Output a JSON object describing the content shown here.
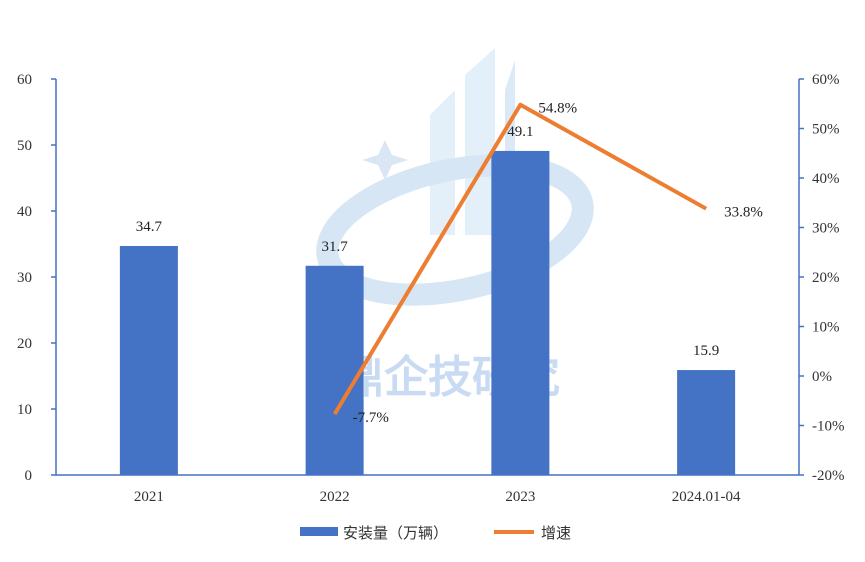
{
  "chart_data": {
    "type": "bar",
    "categories": [
      "2021",
      "2022",
      "2023",
      "2024.01-04"
    ],
    "series": [
      {
        "name": "安装量（万辆）",
        "type": "bar",
        "axis": "left",
        "values": [
          34.7,
          31.7,
          49.1,
          15.9
        ],
        "labels": [
          "34.7",
          "31.7",
          "49.1",
          "15.9"
        ],
        "color": "#4472C4"
      },
      {
        "name": "增速",
        "type": "line",
        "axis": "right",
        "values": [
          null,
          -7.7,
          54.8,
          33.8
        ],
        "labels": [
          "",
          "-7.7%",
          "54.8%",
          "33.8%"
        ],
        "color": "#ED7D31"
      }
    ],
    "ylim_left": [
      0,
      60
    ],
    "left_ticks": [
      "0",
      "10",
      "20",
      "30",
      "40",
      "50",
      "60"
    ],
    "ylim_right": [
      -20,
      60
    ],
    "right_ticks": [
      "-20%",
      "-10%",
      "0%",
      "10%",
      "20%",
      "30%",
      "40%",
      "50%",
      "60%"
    ],
    "legend_position": "bottom",
    "grid": false,
    "axis_color": "#4472C4"
  },
  "watermark": {
    "text": "鼎企技研究"
  }
}
